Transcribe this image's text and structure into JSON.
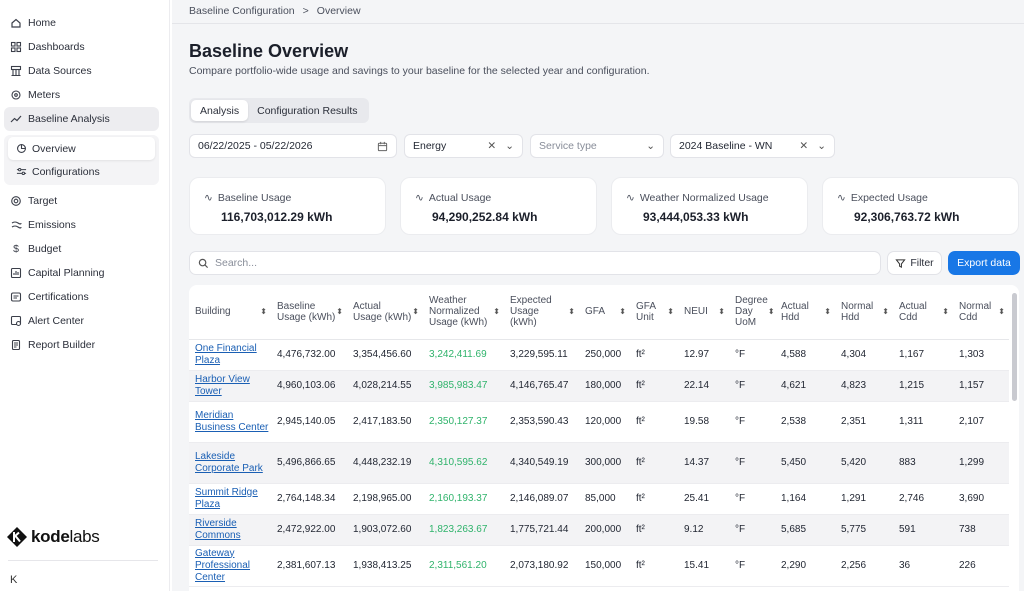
{
  "sidebar": {
    "items": [
      {
        "label": "Home",
        "icon": "home-icon"
      },
      {
        "label": "Dashboards",
        "icon": "dashboard-icon"
      },
      {
        "label": "Data Sources",
        "icon": "data-sources-icon"
      },
      {
        "label": "Meters",
        "icon": "meter-icon"
      },
      {
        "label": "Baseline Analysis",
        "icon": "trend-icon"
      }
    ],
    "sub": [
      {
        "label": "Overview",
        "icon": "pie-icon"
      },
      {
        "label": "Configurations",
        "icon": "config-icon"
      }
    ],
    "items2": [
      {
        "label": "Target",
        "icon": "target-icon"
      },
      {
        "label": "Emissions",
        "icon": "emissions-icon"
      },
      {
        "label": "Budget",
        "icon": "dollar-icon"
      },
      {
        "label": "Capital Planning",
        "icon": "capital-icon"
      },
      {
        "label": "Certifications",
        "icon": "certificate-icon"
      },
      {
        "label": "Alert Center",
        "icon": "alert-icon"
      },
      {
        "label": "Report Builder",
        "icon": "report-icon"
      }
    ],
    "logo_a": "kode",
    "logo_b": "labs",
    "collapse": "K"
  },
  "breadcrumb": {
    "first": "Baseline Configuration",
    "sep": ">",
    "second": "Overview"
  },
  "page": {
    "title": "Baseline Overview",
    "subtitle": "Compare portfolio-wide usage and savings to your baseline for the selected year and configuration."
  },
  "tabs": [
    "Analysis",
    "Configuration Results"
  ],
  "filters": {
    "date": "06/22/2025 - 05/22/2026",
    "energy": "Energy",
    "service_placeholder": "Service type",
    "baseline": "2024 Baseline - WN"
  },
  "cards": [
    {
      "label": "Baseline Usage",
      "value": "116,703,012.29 kWh"
    },
    {
      "label": "Actual Usage",
      "value": "94,290,252.84 kWh"
    },
    {
      "label": "Weather Normalized Usage",
      "value": "93,444,053.33 kWh"
    },
    {
      "label": "Expected Usage",
      "value": "92,306,763.72 kWh"
    }
  ],
  "search": {
    "placeholder": "Search..."
  },
  "buttons": {
    "filter": "Filter",
    "export": "Export data"
  },
  "table": {
    "headers": [
      "Building",
      "Baseline Usage (kWh)",
      "Actual Usage (kWh)",
      "Weather Normalized Usage (kWh)",
      "Expected Usage (kWh)",
      "GFA",
      "GFA Unit",
      "NEUI",
      "Degree Day UoM",
      "Actual Hdd",
      "Normal Hdd",
      "Actual Cdd",
      "Normal Cdd"
    ],
    "rows": [
      [
        "One Financial Plaza",
        "4,476,732.00",
        "3,354,456.60",
        "3,242,411.69",
        "3,229,595.11",
        "250,000",
        "ft²",
        "12.97",
        "°F",
        "4,588",
        "4,304",
        "1,167",
        "1,303"
      ],
      [
        "Harbor View Tower",
        "4,960,103.06",
        "4,028,214.55",
        "3,985,983.47",
        "4,146,765.47",
        "180,000",
        "ft²",
        "22.14",
        "°F",
        "4,621",
        "4,823",
        "1,215",
        "1,157"
      ],
      [
        "Meridian Business Center",
        "2,945,140.05",
        "2,417,183.50",
        "2,350,127.37",
        "2,353,590.43",
        "120,000",
        "ft²",
        "19.58",
        "°F",
        "2,538",
        "2,351",
        "1,311",
        "2,107"
      ],
      [
        "Lakeside Corporate Park",
        "5,496,866.65",
        "4,448,232.19",
        "4,310,595.62",
        "4,340,549.19",
        "300,000",
        "ft²",
        "14.37",
        "°F",
        "5,450",
        "5,420",
        "883",
        "1,299"
      ],
      [
        "Summit Ridge Plaza",
        "2,764,148.34",
        "2,198,965.00",
        "2,160,193.37",
        "2,146,089.07",
        "85,000",
        "ft²",
        "25.41",
        "°F",
        "1,164",
        "1,291",
        "2,746",
        "3,690"
      ],
      [
        "Riverside Commons",
        "2,472,922.00",
        "1,903,072.60",
        "1,823,263.67",
        "1,775,721.44",
        "200,000",
        "ft²",
        "9.12",
        "°F",
        "5,685",
        "5,775",
        "591",
        "738"
      ],
      [
        "Gateway Professional Center",
        "2,381,607.13",
        "1,938,413.25",
        "2,311,561.20",
        "2,073,180.92",
        "150,000",
        "ft²",
        "15.41",
        "°F",
        "2,290",
        "2,256",
        "36",
        "226"
      ]
    ]
  },
  "colors": {
    "accent": "#1877e6",
    "link": "#1a5fb4",
    "positive": "#2fb36b"
  }
}
